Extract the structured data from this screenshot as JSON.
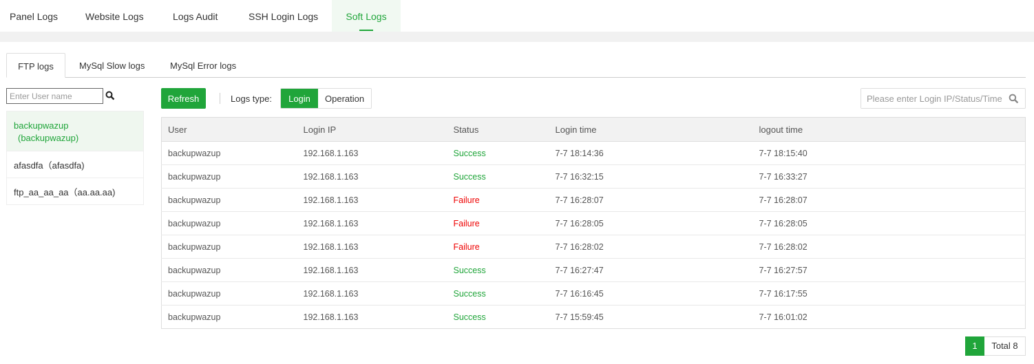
{
  "top_tabs": [
    {
      "label": "Panel Logs"
    },
    {
      "label": "Website Logs"
    },
    {
      "label": "Logs Audit"
    },
    {
      "label": "SSH Login Logs"
    },
    {
      "label": "Soft Logs",
      "active": true
    }
  ],
  "sub_tabs": [
    {
      "label": "FTP logs",
      "active": true
    },
    {
      "label": "MySql Slow logs"
    },
    {
      "label": "MySql Error logs"
    }
  ],
  "user_search": {
    "placeholder": "Enter User name",
    "icon": "search-icon"
  },
  "users": [
    {
      "label": "backupwazup",
      "sub": "(backupwazup)",
      "active": true
    },
    {
      "label": "afasdfa（afasdfa)"
    },
    {
      "label": "ftp_aa_aa_aa（aa.aa.aa)"
    }
  ],
  "toolbar": {
    "refresh": "Refresh",
    "logs_type_label": "Logs type:",
    "types": [
      "Login",
      "Operation"
    ],
    "selected": "Login",
    "search_placeholder": "Please enter Login IP/Status/Time"
  },
  "table": {
    "headers": [
      "User",
      "Login IP",
      "Status",
      "Login time",
      "logout time"
    ],
    "rows": [
      [
        "backupwazup",
        "192.168.1.163",
        "Success",
        "7-7 18:14:36",
        "7-7 18:15:40"
      ],
      [
        "backupwazup",
        "192.168.1.163",
        "Success",
        "7-7 16:32:15",
        "7-7 16:33:27"
      ],
      [
        "backupwazup",
        "192.168.1.163",
        "Failure",
        "7-7 16:28:07",
        "7-7 16:28:07"
      ],
      [
        "backupwazup",
        "192.168.1.163",
        "Failure",
        "7-7 16:28:05",
        "7-7 16:28:05"
      ],
      [
        "backupwazup",
        "192.168.1.163",
        "Failure",
        "7-7 16:28:02",
        "7-7 16:28:02"
      ],
      [
        "backupwazup",
        "192.168.1.163",
        "Success",
        "7-7 16:27:47",
        "7-7 16:27:57"
      ],
      [
        "backupwazup",
        "192.168.1.163",
        "Success",
        "7-7 16:16:45",
        "7-7 16:17:55"
      ],
      [
        "backupwazup",
        "192.168.1.163",
        "Success",
        "7-7 15:59:45",
        "7-7 16:01:02"
      ]
    ]
  },
  "pagination": {
    "current": "1",
    "total": "Total 8"
  },
  "colors": {
    "accent": "#20a53a",
    "failure": "#e00000"
  }
}
